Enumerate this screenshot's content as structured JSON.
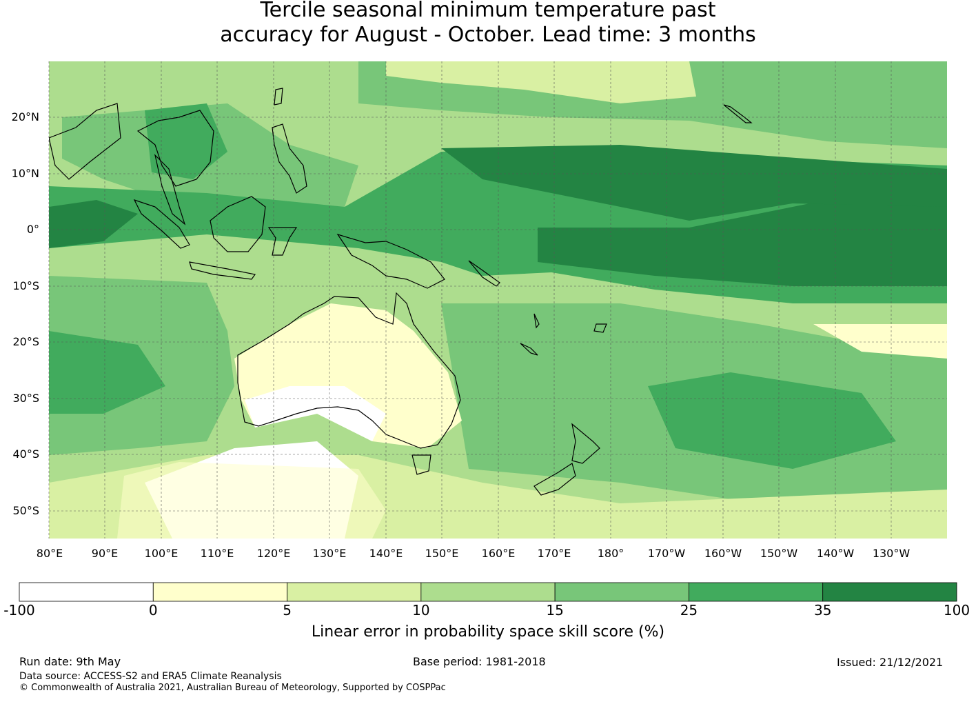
{
  "title": {
    "line1": "Tercile seasonal minimum temperature past",
    "line2": "accuracy for August - October. Lead time: 3 months"
  },
  "map": {
    "lat_labels": [
      "20°N",
      "10°N",
      "0°",
      "10°S",
      "20°S",
      "30°S",
      "40°S",
      "50°S"
    ],
    "lon_labels": [
      "80°E",
      "90°E",
      "100°E",
      "110°E",
      "120°E",
      "130°E",
      "140°E",
      "150°E",
      "160°E",
      "170°E",
      "180°",
      "170°W",
      "160°W",
      "150°W",
      "140°W",
      "130°W"
    ],
    "lat_range": [
      -55,
      30
    ],
    "lon_range": [
      80,
      240
    ],
    "grid": true,
    "coastline_color": "#000000",
    "regions_described": "Skill scores 25-100% along equatorial Pacific band; near 0 to negative over western/southern Australia and Southern Ocean south of Australia"
  },
  "colorbar": {
    "tick_labels": [
      "-100",
      "0",
      "5",
      "10",
      "15",
      "25",
      "35",
      "100"
    ],
    "colors": [
      "#ffffff",
      "#ffffcc",
      "#d9f0a3",
      "#addd8e",
      "#78c679",
      "#41ab5d",
      "#238443"
    ],
    "label": "Linear error in probability space skill score (%)"
  },
  "footer": {
    "run_date": "Run date: 9th May",
    "base_period": "Base period: 1981-2018",
    "issued": "Issued: 21/12/2021",
    "data_source": "Data source: ACCESS-S2 and ERA5 Climate Reanalysis",
    "copyright": "© Commonwealth of Australia 2021, Australian Bureau of Meteorology, Supported by COSPPac"
  }
}
